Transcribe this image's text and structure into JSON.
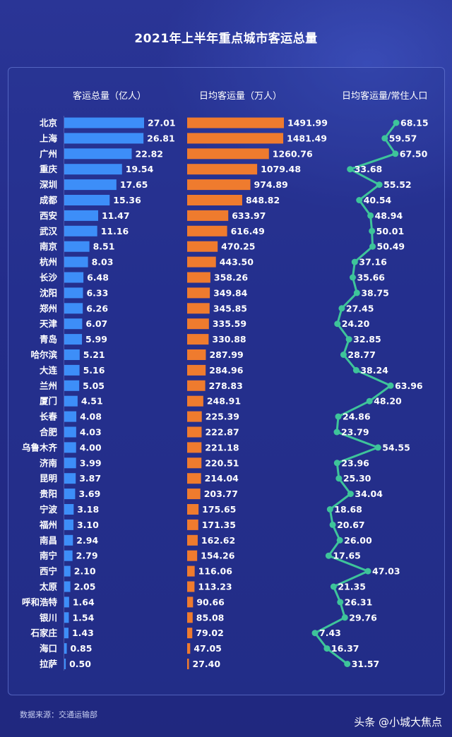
{
  "title": "2021年上半年重点城市客运总量",
  "headers": {
    "total": "客运总量（亿人）",
    "daily": "日均客运量（万人）",
    "ratio": "日均客运量/常住人口"
  },
  "source": "数据来源：交通运输部",
  "watermark": "头条 @小城大焦点",
  "colors": {
    "blue": "#3d8ef8",
    "orange": "#ef7b2e",
    "green": "#3ec49a",
    "background": "#232d8c"
  },
  "chart_data": [
    {
      "type": "bar",
      "title": "客运总量（亿人）",
      "categories": [
        "北京",
        "上海",
        "广州",
        "重庆",
        "深圳",
        "成都",
        "西安",
        "武汉",
        "南京",
        "杭州",
        "长沙",
        "沈阳",
        "郑州",
        "天津",
        "青岛",
        "哈尔滨",
        "大连",
        "兰州",
        "厦门",
        "长春",
        "合肥",
        "乌鲁木齐",
        "济南",
        "昆明",
        "贵阳",
        "宁波",
        "福州",
        "南昌",
        "南宁",
        "西宁",
        "太原",
        "呼和浩特",
        "银川",
        "石家庄",
        "海口",
        "拉萨"
      ],
      "values": [
        27.01,
        26.81,
        22.82,
        19.54,
        17.65,
        15.36,
        11.47,
        11.16,
        8.51,
        8.03,
        6.48,
        6.33,
        6.26,
        6.07,
        5.99,
        5.21,
        5.16,
        5.05,
        4.51,
        4.08,
        4.03,
        4.0,
        3.99,
        3.87,
        3.69,
        3.18,
        3.1,
        2.94,
        2.79,
        2.1,
        2.05,
        1.64,
        1.54,
        1.43,
        0.85,
        0.5
      ],
      "labels": [
        "27.01",
        "26.81",
        "22.82",
        "19.54",
        "17.65",
        "15.36",
        "11.47",
        "11.16",
        "8.51",
        "8.03",
        "6.48",
        "6.33",
        "6.26",
        "6.07",
        "5.99",
        "5.21",
        "5.16",
        "5.05",
        "4.51",
        "4.08",
        "4.03",
        "4.00",
        "3.99",
        "3.87",
        "3.69",
        "3.18",
        "3.10",
        "2.94",
        "2.79",
        "2.10",
        "2.05",
        "1.64",
        "1.54",
        "1.43",
        "0.85",
        "0.50"
      ]
    },
    {
      "type": "bar",
      "title": "日均客运量（万人）",
      "values": [
        1491.99,
        1481.49,
        1260.76,
        1079.48,
        974.89,
        848.82,
        633.97,
        616.49,
        470.25,
        443.5,
        358.26,
        349.84,
        345.85,
        335.59,
        330.88,
        287.99,
        284.96,
        278.83,
        248.91,
        225.39,
        222.87,
        221.18,
        220.51,
        214.04,
        203.77,
        175.65,
        171.35,
        162.62,
        154.26,
        116.06,
        113.23,
        90.66,
        85.08,
        79.02,
        47.05,
        27.4
      ],
      "labels": [
        "1491.99",
        "1481.49",
        "1260.76",
        "1079.48",
        "974.89",
        "848.82",
        "633.97",
        "616.49",
        "470.25",
        "443.50",
        "358.26",
        "349.84",
        "345.85",
        "335.59",
        "330.88",
        "287.99",
        "284.96",
        "278.83",
        "248.91",
        "225.39",
        "222.87",
        "221.18",
        "220.51",
        "214.04",
        "203.77",
        "175.65",
        "171.35",
        "162.62",
        "154.26",
        "116.06",
        "113.23",
        "90.66",
        "85.08",
        "79.02",
        "47.05",
        "27.40"
      ]
    },
    {
      "type": "line",
      "title": "日均客运量/常住人口",
      "values": [
        68.15,
        59.57,
        67.5,
        33.68,
        55.52,
        40.54,
        48.94,
        50.01,
        50.49,
        37.16,
        35.66,
        38.75,
        27.45,
        24.2,
        32.85,
        28.77,
        38.24,
        63.96,
        48.2,
        24.86,
        23.79,
        54.55,
        23.96,
        25.3,
        34.04,
        18.68,
        20.67,
        26.0,
        17.65,
        47.03,
        21.35,
        26.31,
        29.76,
        7.43,
        16.37,
        31.57
      ],
      "labels": [
        "68.15",
        "59.57",
        "67.50",
        "33.68",
        "55.52",
        "40.54",
        "48.94",
        "50.01",
        "50.49",
        "37.16",
        "35.66",
        "38.75",
        "27.45",
        "24.20",
        "32.85",
        "28.77",
        "38.24",
        "63.96",
        "48.20",
        "24.86",
        "23.79",
        "54.55",
        "23.96",
        "25.30",
        "34.04",
        "18.68",
        "20.67",
        "26.00",
        "17.65",
        "47.03",
        "21.35",
        "26.31",
        "29.76",
        "7.43",
        "16.37",
        "31.57"
      ]
    }
  ]
}
